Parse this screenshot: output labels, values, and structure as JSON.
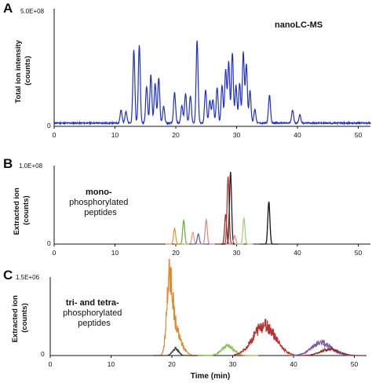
{
  "chart_data": [
    {
      "panel": "A",
      "type": "line",
      "ylabel": "Total ion intensity (counts)",
      "ylabel_lines": [
        "Total ion intensity",
        "(counts)"
      ],
      "ymax_label": "5.0E+08",
      "ymin_label": "0",
      "xlim": [
        0,
        52
      ],
      "ylim": [
        0,
        500000000
      ],
      "x_ticks": [
        "0",
        "10",
        "20",
        "30",
        "40",
        "50"
      ],
      "annotation": "nanoLC-MS",
      "colors": {
        "trace": "#1f2fd0"
      },
      "peaks": [
        {
          "x": 11.0,
          "y": 55000000
        },
        {
          "x": 11.8,
          "y": 50000000
        },
        {
          "x": 13.1,
          "y": 310000000
        },
        {
          "x": 14.0,
          "y": 330000000
        },
        {
          "x": 15.2,
          "y": 155000000
        },
        {
          "x": 15.9,
          "y": 205000000
        },
        {
          "x": 16.6,
          "y": 170000000
        },
        {
          "x": 17.2,
          "y": 190000000
        },
        {
          "x": 18.0,
          "y": 70000000
        },
        {
          "x": 19.8,
          "y": 130000000
        },
        {
          "x": 21.0,
          "y": 75000000
        },
        {
          "x": 21.6,
          "y": 125000000
        },
        {
          "x": 22.4,
          "y": 115000000
        },
        {
          "x": 23.5,
          "y": 350000000
        },
        {
          "x": 24.9,
          "y": 140000000
        },
        {
          "x": 25.6,
          "y": 95000000
        },
        {
          "x": 26.1,
          "y": 100000000
        },
        {
          "x": 26.8,
          "y": 150000000
        },
        {
          "x": 27.6,
          "y": 160000000
        },
        {
          "x": 28.2,
          "y": 230000000
        },
        {
          "x": 28.7,
          "y": 260000000
        },
        {
          "x": 29.3,
          "y": 300000000
        },
        {
          "x": 29.9,
          "y": 160000000
        },
        {
          "x": 30.5,
          "y": 170000000
        },
        {
          "x": 31.1,
          "y": 300000000
        },
        {
          "x": 31.6,
          "y": 250000000
        },
        {
          "x": 32.2,
          "y": 140000000
        },
        {
          "x": 33.0,
          "y": 60000000
        },
        {
          "x": 35.4,
          "y": 120000000
        },
        {
          "x": 39.2,
          "y": 55000000
        },
        {
          "x": 40.4,
          "y": 35000000
        }
      ]
    },
    {
      "panel": "B",
      "type": "line",
      "ylabel": "Extracted ion (counts)",
      "ylabel_lines": [
        "Extracted ion",
        "(counts)"
      ],
      "ymax_label": "1.0E+08",
      "ymin_label": "0",
      "xlim": [
        0,
        52
      ],
      "ylim": [
        0,
        100000000
      ],
      "x_ticks": [
        "0",
        "10",
        "20",
        "30",
        "40",
        "50"
      ],
      "annotation_lines": [
        "mono-",
        "phosphorylated",
        "peptides"
      ],
      "series": [
        {
          "color": "#e69a3a",
          "peaks": [
            {
              "x": 19.8,
              "y": 20000000
            }
          ]
        },
        {
          "color": "#6db33f",
          "peaks": [
            {
              "x": 21.3,
              "y": 30000000
            }
          ]
        },
        {
          "color": "#e3a07a",
          "peaks": [
            {
              "x": 22.8,
              "y": 15000000
            }
          ]
        },
        {
          "color": "#5b5fb8",
          "peaks": [
            {
              "x": 23.7,
              "y": 13000000
            }
          ]
        },
        {
          "color": "#e08a8a",
          "peaks": [
            {
              "x": 25.0,
              "y": 31000000
            }
          ]
        },
        {
          "color": "#9b2d2d",
          "peaks": [
            {
              "x": 28.2,
              "y": 38000000
            }
          ]
        },
        {
          "color": "#c63232",
          "peaks": [
            {
              "x": 28.6,
              "y": 86000000
            }
          ]
        },
        {
          "color": "#222222",
          "peaks": [
            {
              "x": 29.0,
              "y": 92000000
            }
          ]
        },
        {
          "color": "#f08a8a",
          "peaks": [
            {
              "x": 29.7,
              "y": 11000000
            }
          ]
        },
        {
          "color": "#a8d07a",
          "peaks": [
            {
              "x": 31.2,
              "y": 33000000
            }
          ]
        },
        {
          "color": "#111111",
          "peaks": [
            {
              "x": 35.3,
              "y": 54000000
            }
          ]
        }
      ]
    },
    {
      "panel": "C",
      "type": "line",
      "ylabel": "Extracted ion (counts)",
      "ylabel_lines": [
        "Extracted ion",
        "(counts)"
      ],
      "ymax_label": "1.5E+06",
      "ymin_label": "0",
      "xlim": [
        0,
        52
      ],
      "ylim": [
        0,
        1500000
      ],
      "x_ticks": [
        "0",
        "10",
        "20",
        "30",
        "40",
        "50"
      ],
      "xlabel": "Time (min)",
      "annotation_bold": "tri- and tetra-",
      "annotation_lines": [
        "phosphorylated",
        "peptides"
      ],
      "series": [
        {
          "color": "#e0892e",
          "peaks": [
            {
              "x": 19.6,
              "y": 1350000,
              "w": 0.45
            },
            {
              "x": 20.4,
              "y": 500000,
              "w": 0.6
            },
            {
              "x": 21.5,
              "y": 180000,
              "w": 0.7
            }
          ]
        },
        {
          "color": "#3a3a3a",
          "peaks": [
            {
              "x": 20.6,
              "y": 130000,
              "w": 0.5
            }
          ]
        },
        {
          "color": "#8cc152",
          "peaks": [
            {
              "x": 29.2,
              "y": 180000,
              "w": 1.0
            }
          ]
        },
        {
          "color": "#b83232",
          "peaks": [
            {
              "x": 35.2,
              "y": 590000,
              "w": 1.8
            }
          ]
        },
        {
          "color": "#7a5aa6",
          "peaks": [
            {
              "x": 44.6,
              "y": 250000,
              "w": 1.6
            }
          ]
        },
        {
          "color": "#8a2f2f",
          "peaks": [
            {
              "x": 46.0,
              "y": 120000,
              "w": 1.5
            }
          ]
        }
      ]
    }
  ]
}
